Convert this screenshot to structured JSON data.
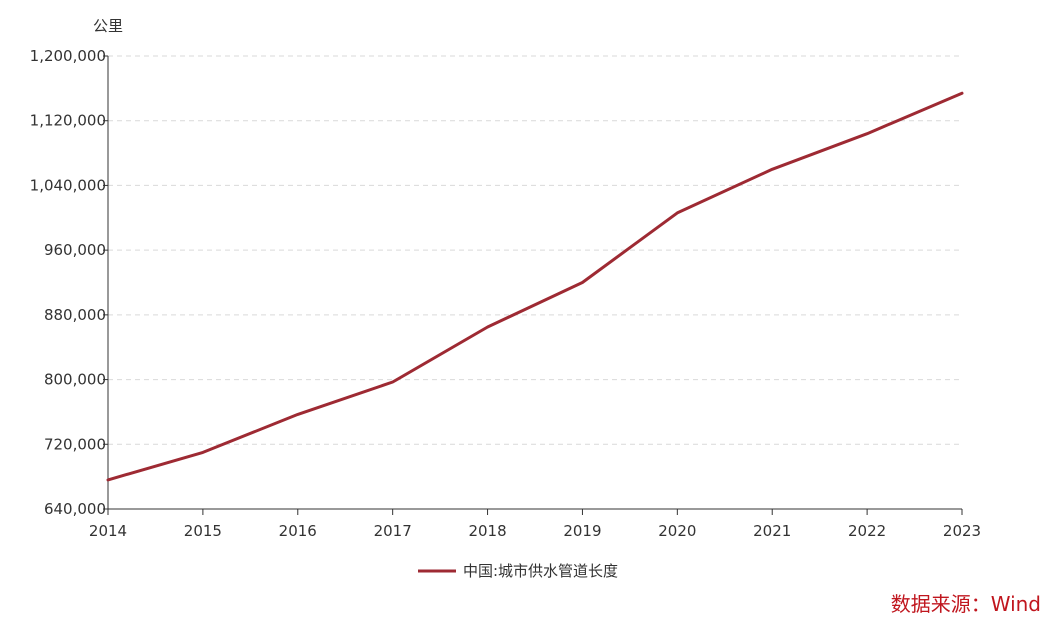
{
  "chart_data": {
    "type": "line",
    "title": "",
    "xlabel": "",
    "ylabel": "公里",
    "categories": [
      "2014",
      "2015",
      "2016",
      "2017",
      "2018",
      "2019",
      "2020",
      "2021",
      "2022",
      "2023"
    ],
    "series": [
      {
        "name": "中国:城市供水管道长度",
        "color": "#9e2a33",
        "values": [
          676000,
          710000,
          757000,
          797000,
          865000,
          920000,
          1006000,
          1060000,
          1104000,
          1154000
        ]
      }
    ],
    "ylim": [
      640000,
      1200000
    ],
    "yticks": [
      "640,000",
      "720,000",
      "800,000",
      "880,000",
      "960,000",
      "1,040,000",
      "1,120,000",
      "1,200,000"
    ],
    "ytick_values": [
      640000,
      720000,
      800000,
      880000,
      960000,
      1040000,
      1120000,
      1200000
    ],
    "grid": "horizontal-dashed",
    "legend_position": "bottom-center"
  },
  "source": {
    "text": "数据来源：Wind",
    "color": "#c0161e"
  }
}
